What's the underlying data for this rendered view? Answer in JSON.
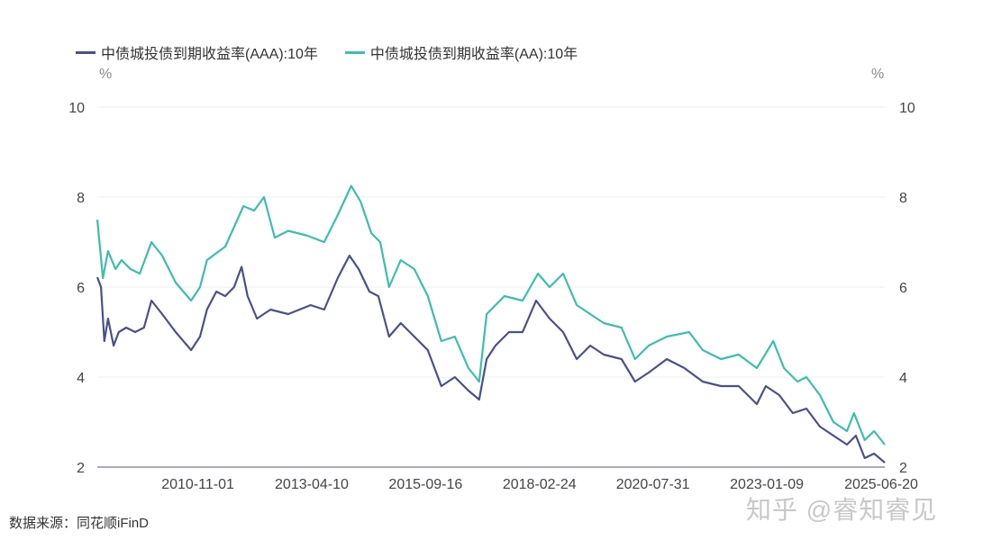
{
  "chart_data": {
    "type": "line",
    "title": "",
    "ylabel_left": "%",
    "ylabel_right": "%",
    "ylim": [
      2,
      10
    ],
    "yticks": [
      2,
      4,
      6,
      8,
      10
    ],
    "xlim": [
      2008.6,
      2025.47
    ],
    "xticks": [
      {
        "label": "2010-11-01",
        "x": 2010.83
      },
      {
        "label": "2013-04-10",
        "x": 2013.27
      },
      {
        "label": "2015-09-16",
        "x": 2015.71
      },
      {
        "label": "2018-02-24",
        "x": 2018.15
      },
      {
        "label": "2020-07-31",
        "x": 2020.58
      },
      {
        "label": "2023-01-09",
        "x": 2023.02
      },
      {
        "label": "2025-06-20",
        "x": 2025.47
      }
    ],
    "grid": true,
    "legend_placement": "top-left",
    "series": [
      {
        "name": "中债城投债到期收益率(AAA):10年",
        "color": "#4a5187",
        "points": [
          [
            2008.6,
            6.22
          ],
          [
            2008.68,
            6.0
          ],
          [
            2008.75,
            4.8
          ],
          [
            2008.83,
            5.3
          ],
          [
            2008.95,
            4.7
          ],
          [
            2009.06,
            5.0
          ],
          [
            2009.22,
            5.1
          ],
          [
            2009.41,
            5.0
          ],
          [
            2009.6,
            5.1
          ],
          [
            2009.76,
            5.7
          ],
          [
            2009.99,
            5.4
          ],
          [
            2010.28,
            5.0
          ],
          [
            2010.61,
            4.6
          ],
          [
            2010.8,
            4.9
          ],
          [
            2010.95,
            5.5
          ],
          [
            2011.15,
            5.9
          ],
          [
            2011.34,
            5.8
          ],
          [
            2011.53,
            6.0
          ],
          [
            2011.69,
            6.45
          ],
          [
            2011.82,
            5.8
          ],
          [
            2012.02,
            5.3
          ],
          [
            2012.31,
            5.5
          ],
          [
            2012.69,
            5.4
          ],
          [
            2013.17,
            5.6
          ],
          [
            2013.46,
            5.5
          ],
          [
            2013.75,
            6.2
          ],
          [
            2014.0,
            6.7
          ],
          [
            2014.2,
            6.4
          ],
          [
            2014.43,
            5.9
          ],
          [
            2014.62,
            5.8
          ],
          [
            2014.85,
            4.9
          ],
          [
            2015.1,
            5.2
          ],
          [
            2015.39,
            4.9
          ],
          [
            2015.68,
            4.6
          ],
          [
            2015.97,
            3.8
          ],
          [
            2016.26,
            4.0
          ],
          [
            2016.55,
            3.7
          ],
          [
            2016.78,
            3.5
          ],
          [
            2016.94,
            4.4
          ],
          [
            2017.13,
            4.7
          ],
          [
            2017.42,
            5.0
          ],
          [
            2017.71,
            5.0
          ],
          [
            2018.0,
            5.7
          ],
          [
            2018.29,
            5.3
          ],
          [
            2018.58,
            5.0
          ],
          [
            2018.87,
            4.4
          ],
          [
            2019.16,
            4.7
          ],
          [
            2019.45,
            4.5
          ],
          [
            2019.83,
            4.4
          ],
          [
            2020.12,
            3.9
          ],
          [
            2020.41,
            4.1
          ],
          [
            2020.8,
            4.4
          ],
          [
            2021.18,
            4.2
          ],
          [
            2021.57,
            3.9
          ],
          [
            2021.96,
            3.8
          ],
          [
            2022.34,
            3.8
          ],
          [
            2022.73,
            3.4
          ],
          [
            2022.92,
            3.8
          ],
          [
            2023.21,
            3.6
          ],
          [
            2023.5,
            3.2
          ],
          [
            2023.79,
            3.3
          ],
          [
            2024.08,
            2.9
          ],
          [
            2024.37,
            2.7
          ],
          [
            2024.66,
            2.5
          ],
          [
            2024.85,
            2.7
          ],
          [
            2025.04,
            2.2
          ],
          [
            2025.24,
            2.3
          ],
          [
            2025.47,
            2.1
          ]
        ]
      },
      {
        "name": "中债城投债到期收益率(AA):10年",
        "color": "#3fbcab",
        "points": [
          [
            2008.6,
            7.5
          ],
          [
            2008.72,
            6.2
          ],
          [
            2008.83,
            6.8
          ],
          [
            2008.99,
            6.4
          ],
          [
            2009.12,
            6.6
          ],
          [
            2009.31,
            6.4
          ],
          [
            2009.51,
            6.3
          ],
          [
            2009.76,
            7.0
          ],
          [
            2009.99,
            6.7
          ],
          [
            2010.28,
            6.1
          ],
          [
            2010.61,
            5.7
          ],
          [
            2010.8,
            6.0
          ],
          [
            2010.95,
            6.6
          ],
          [
            2011.34,
            6.9
          ],
          [
            2011.73,
            7.8
          ],
          [
            2011.96,
            7.7
          ],
          [
            2012.17,
            8.0
          ],
          [
            2012.4,
            7.1
          ],
          [
            2012.69,
            7.25
          ],
          [
            2013.08,
            7.15
          ],
          [
            2013.46,
            7.0
          ],
          [
            2013.75,
            7.6
          ],
          [
            2014.04,
            8.25
          ],
          [
            2014.24,
            7.9
          ],
          [
            2014.47,
            7.2
          ],
          [
            2014.66,
            7.0
          ],
          [
            2014.85,
            6.0
          ],
          [
            2015.1,
            6.6
          ],
          [
            2015.39,
            6.4
          ],
          [
            2015.68,
            5.8
          ],
          [
            2015.97,
            4.8
          ],
          [
            2016.26,
            4.9
          ],
          [
            2016.55,
            4.2
          ],
          [
            2016.78,
            3.9
          ],
          [
            2016.94,
            5.4
          ],
          [
            2017.32,
            5.8
          ],
          [
            2017.71,
            5.7
          ],
          [
            2018.04,
            6.3
          ],
          [
            2018.29,
            6.0
          ],
          [
            2018.58,
            6.3
          ],
          [
            2018.87,
            5.6
          ],
          [
            2019.16,
            5.4
          ],
          [
            2019.45,
            5.2
          ],
          [
            2019.83,
            5.1
          ],
          [
            2020.12,
            4.4
          ],
          [
            2020.41,
            4.7
          ],
          [
            2020.8,
            4.9
          ],
          [
            2021.28,
            5.0
          ],
          [
            2021.57,
            4.6
          ],
          [
            2021.96,
            4.4
          ],
          [
            2022.34,
            4.5
          ],
          [
            2022.73,
            4.2
          ],
          [
            2023.08,
            4.8
          ],
          [
            2023.31,
            4.2
          ],
          [
            2023.6,
            3.9
          ],
          [
            2023.79,
            4.0
          ],
          [
            2024.08,
            3.6
          ],
          [
            2024.37,
            3.0
          ],
          [
            2024.66,
            2.8
          ],
          [
            2024.81,
            3.2
          ],
          [
            2025.04,
            2.6
          ],
          [
            2025.24,
            2.8
          ],
          [
            2025.47,
            2.5
          ]
        ]
      }
    ]
  },
  "source": "数据来源：同花顺iFinD",
  "watermark": "知乎 @睿知睿见"
}
